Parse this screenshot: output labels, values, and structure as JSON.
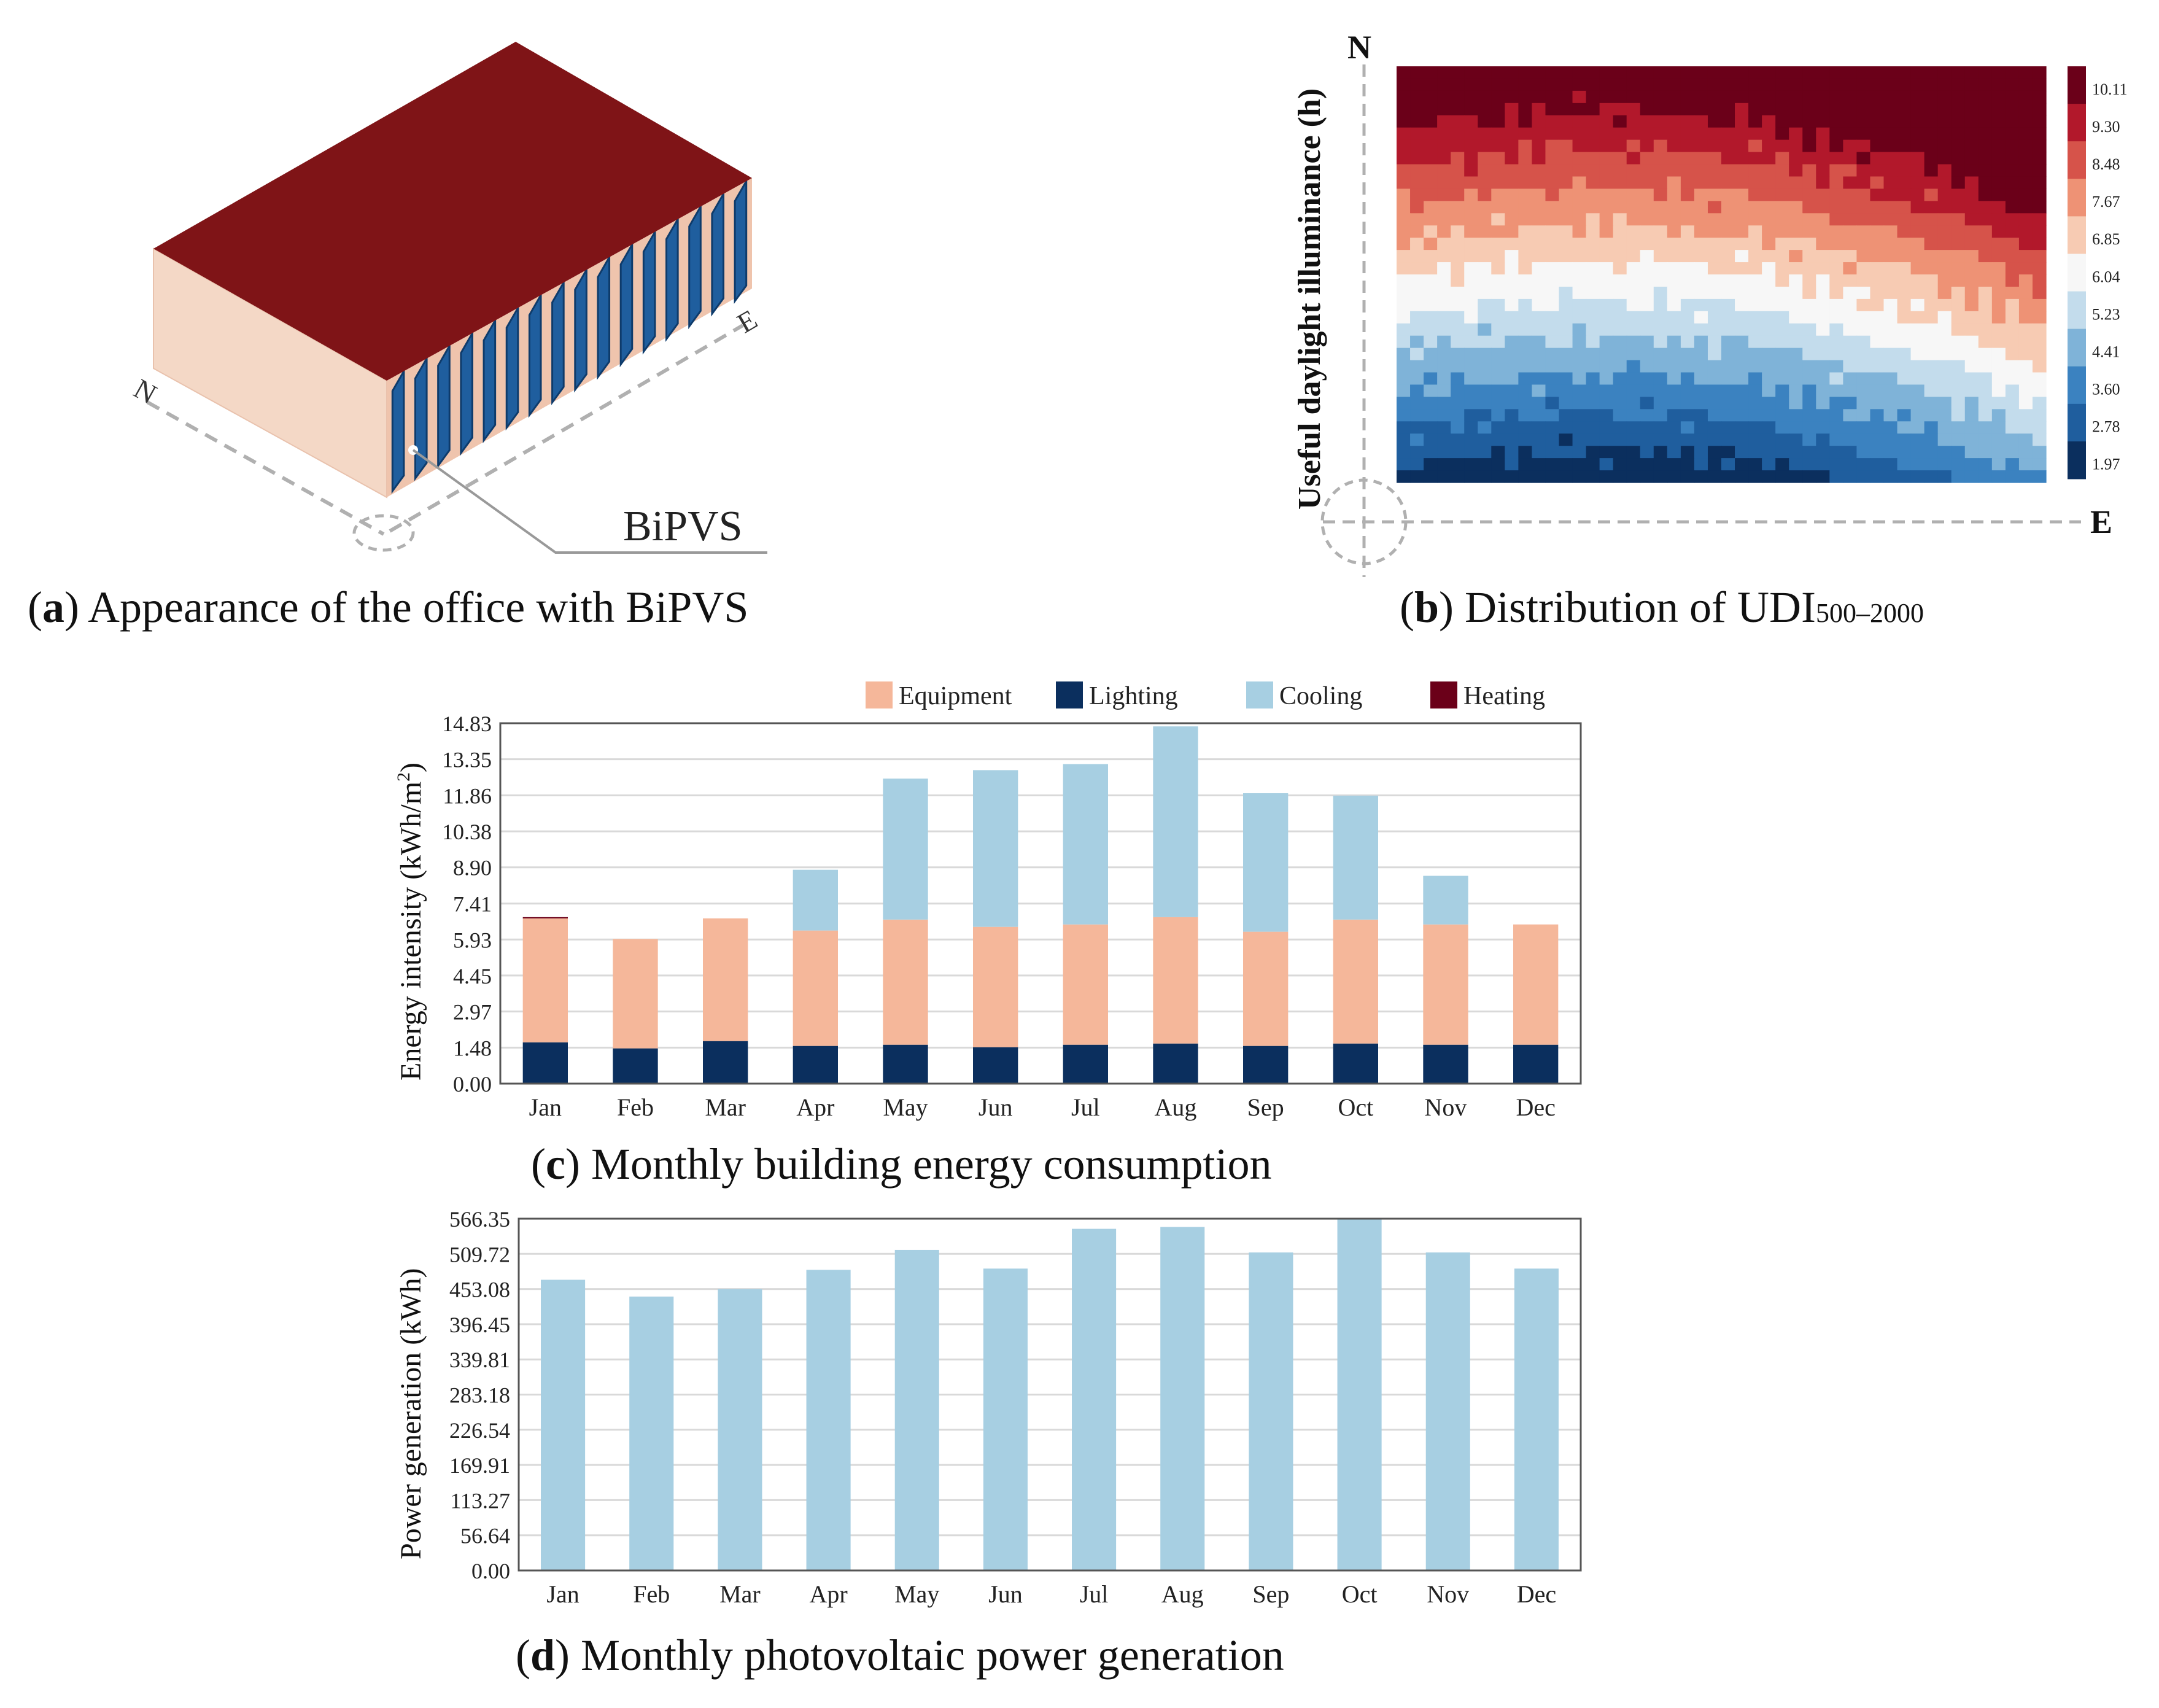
{
  "colors": {
    "roof": "#7f1417",
    "wall": "#f4d8c6",
    "wall_side": "#efc4ad",
    "pv": "#1f5e9e",
    "equipment": "#f5b79a",
    "lighting": "#0b2f5e",
    "cooling": "#a7cfe2",
    "heating": "#6b0019",
    "pv_bar": "#a7cfe2"
  },
  "panel_a": {
    "label_N": "N",
    "label_E": "E",
    "label_bipvs": "BiPVS",
    "caption_letter": "a",
    "caption_text": "Appearance of the office with BiPVS"
  },
  "panel_b": {
    "label_N": "N",
    "label_E": "E",
    "axis_label": "Useful daylight illuminance (h)",
    "colorbar_ticks": [
      "10.11",
      "9.30",
      "8.48",
      "7.67",
      "6.85",
      "6.04",
      "5.23",
      "4.41",
      "3.60",
      "2.78",
      "1.97"
    ],
    "caption_letter": "b",
    "caption_text": "Distribution of UDI",
    "caption_sub": "500–2000"
  },
  "panel_c": {
    "caption_letter": "c",
    "caption_text": "Monthly building energy consumption"
  },
  "panel_d": {
    "caption_letter": "d",
    "caption_text": "Monthly photovoltaic power generation"
  },
  "chart_data": [
    {
      "type": "heatmap",
      "title": "Distribution of UDI500–2000",
      "ylabel": "Useful daylight illuminance (h)",
      "value_range": [
        1.97,
        10.11
      ],
      "colorbar_ticks": [
        10.11,
        9.3,
        8.48,
        7.67,
        6.85,
        6.04,
        5.23,
        4.41,
        3.6,
        2.78,
        1.97
      ]
    },
    {
      "type": "bar",
      "stacked": true,
      "title": "Monthly building energy consumption",
      "ylabel": "Energy intensity (kWh/m²)",
      "categories": [
        "Jan",
        "Feb",
        "Mar",
        "Apr",
        "May",
        "Jun",
        "Jul",
        "Aug",
        "Sep",
        "Oct",
        "Nov",
        "Dec"
      ],
      "series": [
        {
          "name": "Lighting",
          "values": [
            1.7,
            1.45,
            1.75,
            1.55,
            1.6,
            1.5,
            1.6,
            1.65,
            1.55,
            1.65,
            1.6,
            1.6
          ]
        },
        {
          "name": "Equipment",
          "values": [
            5.1,
            4.5,
            5.05,
            4.75,
            5.15,
            4.95,
            4.95,
            5.2,
            4.7,
            5.1,
            4.95,
            4.95
          ]
        },
        {
          "name": "Cooling",
          "values": [
            0,
            0,
            0,
            2.5,
            5.8,
            6.45,
            6.6,
            7.85,
            5.7,
            5.1,
            2.0,
            0
          ]
        },
        {
          "name": "Heating",
          "values": [
            0.05,
            0,
            0,
            0,
            0,
            0,
            0,
            0,
            0,
            0,
            0,
            0
          ]
        }
      ],
      "ylim": [
        0,
        14.83
      ],
      "yticks": [
        "0.00",
        "1.48",
        "2.97",
        "4.45",
        "5.93",
        "7.41",
        "8.90",
        "10.38",
        "11.86",
        "13.35",
        "14.83"
      ]
    },
    {
      "type": "bar",
      "title": "Monthly photovoltaic power generation",
      "ylabel": "Power generation (kWh)",
      "categories": [
        "Jan",
        "Feb",
        "Mar",
        "Apr",
        "May",
        "Jun",
        "Jul",
        "Aug",
        "Sep",
        "Oct",
        "Nov",
        "Dec"
      ],
      "values": [
        468,
        441,
        453,
        484,
        516,
        486,
        550,
        553,
        512,
        566,
        512,
        486
      ],
      "ylim": [
        0,
        566.35
      ],
      "yticks": [
        "0.00",
        "56.64",
        "113.27",
        "169.91",
        "226.54",
        "283.18",
        "339.81",
        "396.45",
        "453.08",
        "509.72",
        "566.35"
      ]
    }
  ]
}
